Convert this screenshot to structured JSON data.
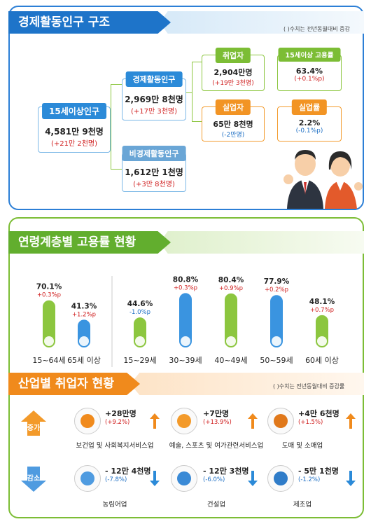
{
  "section1": {
    "title": "경제활동인구 구조",
    "note": "( )수치는 전년동월대비 증감",
    "pop15": {
      "label": "15세이상인구",
      "value": "4,581만 9천명",
      "change": "(+21만 2천명)"
    },
    "active": {
      "label": "경제활동인구",
      "value": "2,969만 8천명",
      "change": "(+17만 3천명)"
    },
    "inactive": {
      "label": "비경제활동인구",
      "value": "1,612만 1천명",
      "change": "(+3만 8천명)"
    },
    "employed": {
      "label": "취업자",
      "value": "2,904만명",
      "change": "(+19만 3천명)"
    },
    "unemployed": {
      "label": "실업자",
      "value": "65만 8천명",
      "change": "(-2만명)"
    },
    "emp_rate": {
      "label": "15세이상 고용률",
      "value": "63.4%",
      "change": "(+0.1%p)"
    },
    "unemp_rate": {
      "label": "실업률",
      "value": "2.2%",
      "change": "(-0.1%p)"
    }
  },
  "section2": {
    "title": "연령계층별 고용률 현황"
  },
  "section3": {
    "title": "산업별 취업자 현황",
    "note": "( )수치는 전년동월대비 증감률",
    "increase_label": "증가",
    "decrease_label": "감소",
    "increase": [
      {
        "name": "보건업 및 사회복지서비스업",
        "value": "+28만명",
        "change": "(+9.2%)",
        "icon": "medical-kit-icon"
      },
      {
        "name": "예술, 스포츠 및 여가관련서비스업",
        "value": "+7만명",
        "change": "(+13.9%)",
        "icon": "palette-icon"
      },
      {
        "name": "도매 및 소매업",
        "value": "+4만 6천명",
        "change": "(+1.5%)",
        "icon": "shopping-basket-icon"
      }
    ],
    "decrease": [
      {
        "name": "농림어업",
        "value": "- 12만 4천명",
        "change": "(-7.8%)",
        "icon": "wheat-icon"
      },
      {
        "name": "건설업",
        "value": "- 12만 3천명",
        "change": "(-6.0%)",
        "icon": "excavator-icon"
      },
      {
        "name": "제조업",
        "value": "- 5만 1천명",
        "change": "(-1.2%)",
        "icon": "gear-icon"
      }
    ]
  },
  "chart_data": {
    "type": "bar",
    "categories": [
      "15~64세",
      "65세 이상",
      "15~29세",
      "30~39세",
      "40~49세",
      "50~59세",
      "60세 이상"
    ],
    "values": [
      70.1,
      41.3,
      44.6,
      80.8,
      80.4,
      77.9,
      48.1
    ],
    "value_labels": [
      "70.1%",
      "41.3%",
      "44.6%",
      "80.8%",
      "80.4%",
      "77.9%",
      "48.1%"
    ],
    "changes": [
      "+0.3%p",
      "+1.2%p",
      "-1.0%p",
      "+0.3%p",
      "+0.9%p",
      "+0.2%p",
      "+0.7%p"
    ],
    "colors": [
      "#8cc63f",
      "#3a94e0",
      "#8cc63f",
      "#3a94e0",
      "#8cc63f",
      "#3a94e0",
      "#8cc63f"
    ],
    "ylim": [
      0,
      100
    ],
    "grid": false
  }
}
